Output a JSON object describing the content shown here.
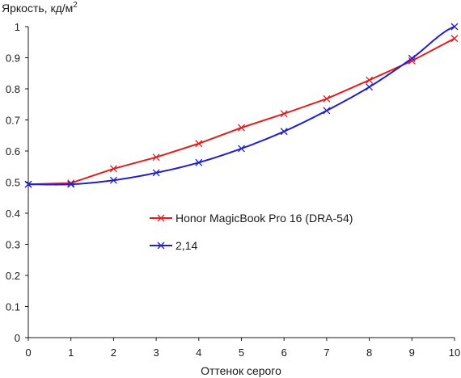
{
  "chart_data": {
    "type": "line",
    "ylabel": "Яркость, кд/м",
    "ylabel_sup": "2",
    "xlabel": "Оттенок серого",
    "xlim": [
      0,
      10
    ],
    "ylim": [
      0,
      1
    ],
    "xticks": [
      "0",
      "1",
      "2",
      "3",
      "4",
      "5",
      "6",
      "7",
      "8",
      "9",
      "10"
    ],
    "yticks": [
      "0",
      "0.1",
      "0.2",
      "0.3",
      "0.4",
      "0.5",
      "0.6",
      "0.7",
      "0.8",
      "0.9",
      "1"
    ],
    "grid": false,
    "legend_position": "center-right",
    "x": [
      0,
      1,
      2,
      3,
      4,
      5,
      6,
      7,
      8,
      9,
      10
    ],
    "series": [
      {
        "name": "Honor MagicBook Pro 16 (DRA-54)",
        "color": "#e41c1c",
        "marker": "x",
        "values": [
          0.493,
          0.497,
          0.543,
          0.58,
          0.624,
          0.675,
          0.72,
          0.768,
          0.828,
          0.89,
          0.962
        ]
      },
      {
        "name": "2,14",
        "color": "#1f1fd0",
        "marker": "x",
        "smooth_curve": true,
        "values": [
          0.493,
          0.493,
          0.506,
          0.53,
          0.563,
          0.608,
          0.663,
          0.73,
          0.806,
          0.898,
          1.0
        ]
      }
    ]
  }
}
